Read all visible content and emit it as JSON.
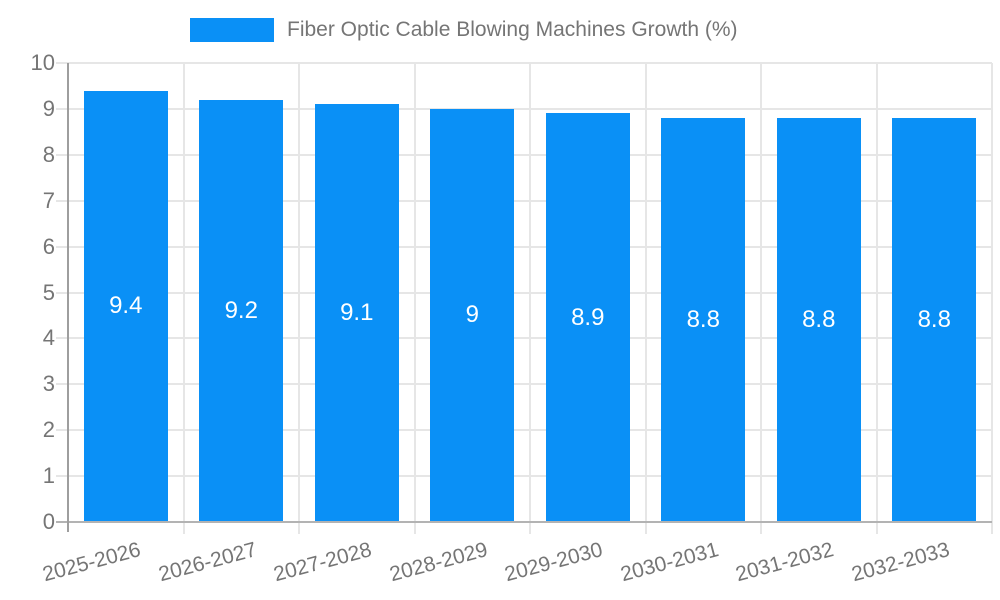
{
  "legend": {
    "label": "Fiber Optic Cable Blowing Machines Growth (%)"
  },
  "chart_data": {
    "type": "bar",
    "title": "Fiber Optic Cable Blowing Machines Growth (%)",
    "categories": [
      "2025-2026",
      "2026-2027",
      "2027-2028",
      "2028-2029",
      "2029-2030",
      "2030-2031",
      "2031-2032",
      "2032-2033"
    ],
    "values": [
      9.4,
      9.2,
      9.1,
      9,
      8.9,
      8.8,
      8.8,
      8.8
    ],
    "bar_labels": [
      "9.4",
      "9.2",
      "9.1",
      "9",
      "8.9",
      "8.8",
      "8.8",
      "8.8"
    ],
    "xlabel": "",
    "ylabel": "",
    "ylim": [
      0,
      10
    ],
    "yticks": [
      0,
      1,
      2,
      3,
      4,
      5,
      6,
      7,
      8,
      9,
      10
    ],
    "grid": true,
    "legend_position": "top"
  },
  "colors": {
    "bar": "#0a90f6",
    "bar_label": "#ffffff",
    "axis_text": "#757575",
    "gridline": "#e6e6e6",
    "baseline": "#b3b3b3",
    "y_axis_line": "#9e9e9e",
    "background": "#ffffff"
  }
}
